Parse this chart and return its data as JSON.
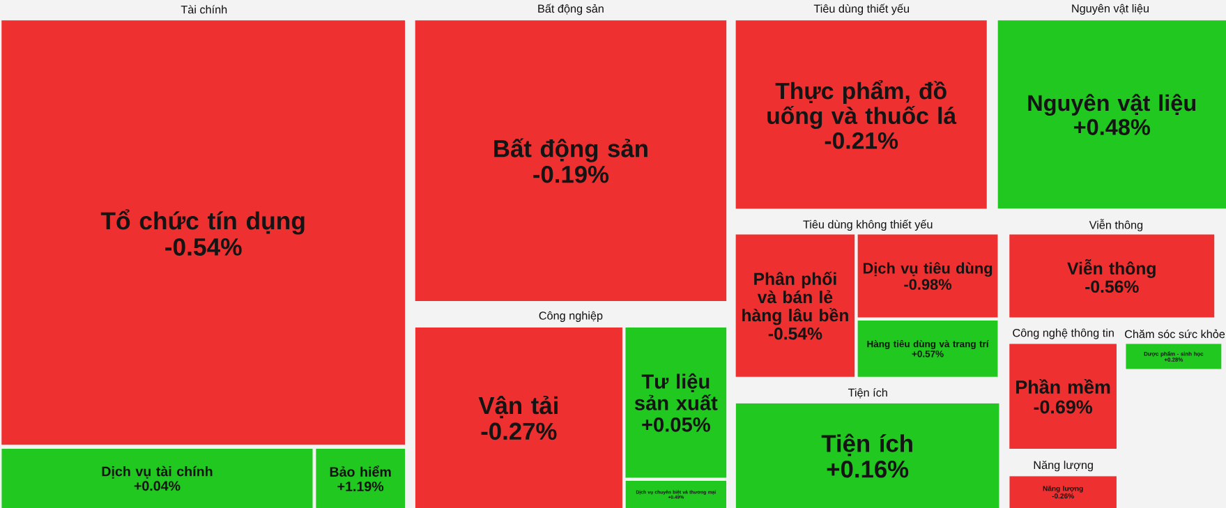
{
  "chart_data": {
    "type": "other",
    "annotations": [
      "Tài chính",
      "Bất động sản",
      "Công nghiệp",
      "Tiêu dùng thiết yếu",
      "Nguyên vật liệu",
      "Tiêu dùng không thiết yếu",
      "Tiện ích",
      "Viễn thông",
      "Công nghệ thông tin",
      "Năng lượng",
      "Chăm sóc sức khỏe"
    ],
    "categories": [
      "Tổ chức tín dụng",
      "Dịch vụ tài chính",
      "Bảo hiểm",
      "Bất động sản",
      "Vận tải",
      "Tư liệu sản xuất",
      "Dịch vụ chuyên biệt và thương mại",
      "Thực phẩm, đồ uống và thuốc lá",
      "Nguyên vật liệu",
      "Phân phối và bán lẻ hàng lâu bền",
      "Dịch vụ tiêu dùng",
      "Hàng tiêu dùng và trang trí",
      "Tiện ích",
      "Viễn thông",
      "Phần mềm",
      "Năng lượng",
      "Dược phẩm - sinh học"
    ],
    "values": [
      -0.54,
      0.04,
      1.19,
      -0.19,
      -0.27,
      0.05,
      0.49,
      -0.21,
      0.48,
      -0.54,
      -0.98,
      0.57,
      0.16,
      -0.56,
      -0.69,
      -0.26,
      0.28
    ],
    "value_labels": [
      "-0.54%",
      "+0.04%",
      "+1.19%",
      "-0.19%",
      "-0.27%",
      "+0.05%",
      "+0.49%",
      "-0.21%",
      "+0.48%",
      "-0.54%",
      "-0.98%",
      "+0.57%",
      "+0.16%",
      "-0.56%",
      "-0.69%",
      "-0.26%",
      "+0.28%"
    ]
  }
}
